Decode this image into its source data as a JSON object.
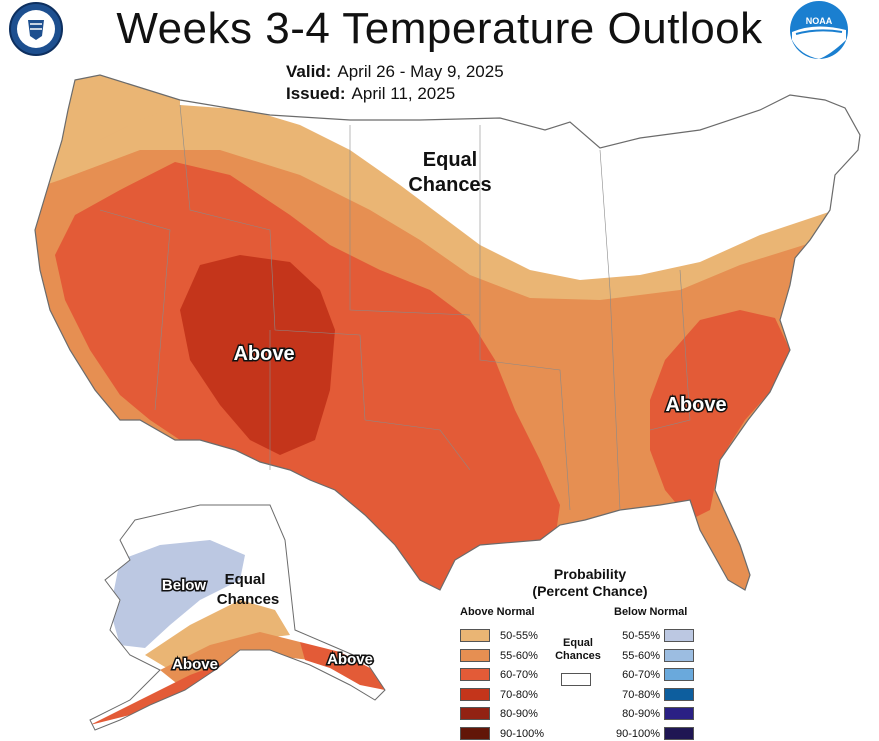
{
  "header": {
    "title": "Weeks 3-4 Temperature Outlook",
    "valid_label": "Valid:",
    "valid_value": "April 26 - May 9, 2025",
    "issued_label": "Issued:",
    "issued_value": "April 11, 2025"
  },
  "logos": {
    "left": "doc-seal-icon",
    "right": "noaa-logo-icon"
  },
  "map_labels": {
    "conus_equal": [
      "Equal",
      "Chances"
    ],
    "conus_above_west": "Above",
    "conus_above_east": "Above",
    "ak_below": "Below",
    "ak_equal": [
      "Equal",
      "Chances"
    ],
    "ak_above_sw": "Above",
    "ak_above_se": "Above"
  },
  "legend": {
    "title_line1": "Probability",
    "title_line2": "(Percent Chance)",
    "above_header": "Above Normal",
    "below_header": "Below Normal",
    "equal_label": [
      "Equal",
      "Chances"
    ],
    "above": [
      {
        "label": "50-55%",
        "color": "#eab574"
      },
      {
        "label": "55-60%",
        "color": "#e68f52"
      },
      {
        "label": "60-70%",
        "color": "#e35b37"
      },
      {
        "label": "70-80%",
        "color": "#c4351b"
      },
      {
        "label": "80-90%",
        "color": "#922213"
      },
      {
        "label": "90-100%",
        "color": "#621608"
      }
    ],
    "below": [
      {
        "label": "50-55%",
        "color": "#bcc8e2"
      },
      {
        "label": "55-60%",
        "color": "#9cbde1"
      },
      {
        "label": "60-70%",
        "color": "#6aa9dc"
      },
      {
        "label": "70-80%",
        "color": "#0d5e9e"
      },
      {
        "label": "80-90%",
        "color": "#2a2084"
      },
      {
        "label": "90-100%",
        "color": "#1f1653"
      }
    ],
    "equal_color": "#ffffff"
  }
}
